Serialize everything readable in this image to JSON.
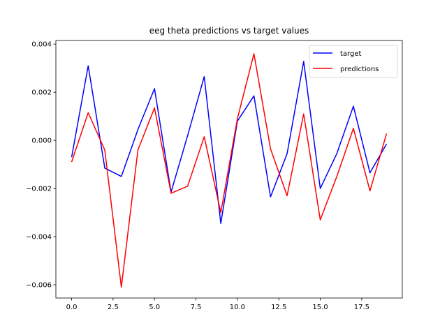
{
  "chart_data": {
    "type": "line",
    "title": "eeg theta predictions vs target values",
    "xlabel": "",
    "ylabel": "",
    "x": [
      0,
      1,
      2,
      3,
      4,
      5,
      6,
      7,
      8,
      9,
      10,
      11,
      12,
      13,
      14,
      15,
      16,
      17,
      18,
      19
    ],
    "xlim": [
      -0.95,
      19.95
    ],
    "ylim": [
      -0.00655,
      0.00415
    ],
    "x_ticks": [
      0,
      2.5,
      5,
      7.5,
      10,
      12.5,
      15,
      17.5
    ],
    "x_tick_labels": [
      "0.0",
      "2.5",
      "5.0",
      "7.5",
      "10.0",
      "12.5",
      "15.0",
      "17.5"
    ],
    "y_ticks": [
      -0.006,
      -0.004,
      -0.002,
      0,
      0.002,
      0.004
    ],
    "y_tick_labels": [
      "−0.006",
      "−0.004",
      "−0.002",
      "0.000",
      "0.002",
      "0.004"
    ],
    "grid": false,
    "legend_position": "top-right",
    "series": [
      {
        "name": "target",
        "color": "#0000ff",
        "values": [
          -0.0007,
          0.0031,
          -0.00115,
          -0.0015,
          0.00045,
          0.00215,
          -0.00215,
          0.0002,
          0.00265,
          -0.00345,
          0.0008,
          0.00185,
          -0.00235,
          -0.00055,
          0.00328,
          -0.002,
          -0.00055,
          0.00142,
          -0.00135,
          -0.00015
        ]
      },
      {
        "name": "predictions",
        "color": "#ff0000",
        "values": [
          -0.0009,
          0.00115,
          -0.0004,
          -0.0061,
          -0.0004,
          0.00135,
          -0.0022,
          -0.0019,
          0.00015,
          -0.003,
          0.0009,
          0.0036,
          -0.00035,
          -0.0023,
          0.0011,
          -0.0033,
          -0.0015,
          0.0005,
          -0.0021,
          0.00028
        ]
      }
    ]
  }
}
